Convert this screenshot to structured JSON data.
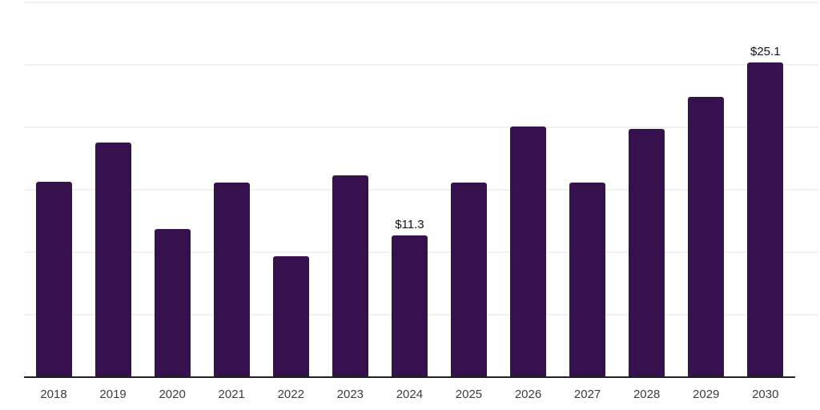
{
  "chart_data": {
    "type": "bar",
    "title": "",
    "xlabel": "",
    "ylabel": "",
    "categories": [
      "2018",
      "2019",
      "2020",
      "2021",
      "2022",
      "2023",
      "2024",
      "2025",
      "2026",
      "2027",
      "2028",
      "2029",
      "2030"
    ],
    "values": [
      15.6,
      18.7,
      11.8,
      15.5,
      9.6,
      16.1,
      11.3,
      15.5,
      20.0,
      15.5,
      19.8,
      22.4,
      25.1
    ],
    "value_labels": [
      "",
      "",
      "",
      "",
      "",
      "",
      "$11.3",
      "",
      "",
      "",
      "",
      "",
      "$25.1"
    ],
    "ylim": [
      0,
      30
    ],
    "gridline_step": 5,
    "grid": "horizontal",
    "legend": "none",
    "colors": {
      "bar": "#36114e",
      "background": "#ffffff",
      "gridline": "#f1f1f1",
      "axis_line": "#212121",
      "tick_label": "#3c3c3c",
      "value_label": "#111111"
    }
  }
}
